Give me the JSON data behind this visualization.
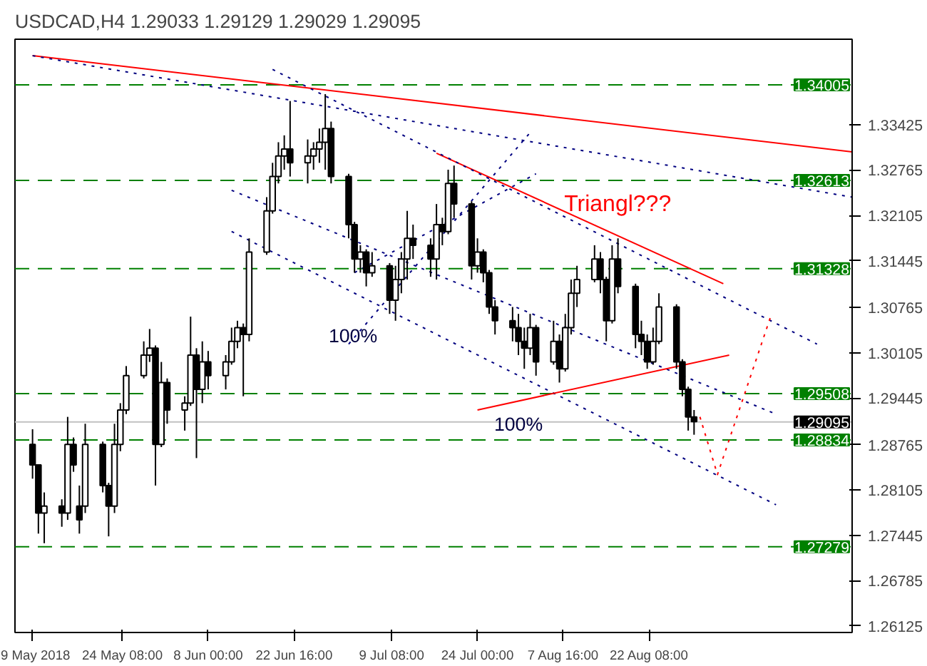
{
  "chart_data": {
    "type": "candlestick",
    "title": "USDCAD,H4  1.29033 1.29129 1.29029 1.29095",
    "color": "#000000",
    "x": [
      "2018-05-09",
      "2018-05-10",
      "2018-05-11",
      "2018-05-14",
      "2018-05-15",
      "2018-05-16",
      "2018-05-17",
      "2018-05-18",
      "2018-05-21",
      "2018-05-22",
      "2018-05-23",
      "2018-05-24",
      "2018-05-25",
      "2018-05-28",
      "2018-05-29",
      "2018-05-30",
      "2018-05-31",
      "2018-06-01",
      "2018-06-04",
      "2018-06-05",
      "2018-06-06",
      "2018-06-07",
      "2018-06-08",
      "2018-06-11",
      "2018-06-12",
      "2018-06-13",
      "2018-06-14",
      "2018-06-15",
      "2018-06-18",
      "2018-06-19",
      "2018-06-20",
      "2018-06-21",
      "2018-06-22",
      "2018-06-25",
      "2018-06-26",
      "2018-06-27",
      "2018-06-28",
      "2018-06-29",
      "2018-07-02",
      "2018-07-03",
      "2018-07-04",
      "2018-07-05",
      "2018-07-06",
      "2018-07-09",
      "2018-07-10",
      "2018-07-11",
      "2018-07-12",
      "2018-07-13",
      "2018-07-16",
      "2018-07-17",
      "2018-07-18",
      "2018-07-19",
      "2018-07-20",
      "2018-07-23",
      "2018-07-24",
      "2018-07-25",
      "2018-07-26",
      "2018-07-27",
      "2018-07-30",
      "2018-07-31",
      "2018-08-01",
      "2018-08-02",
      "2018-08-03",
      "2018-08-06",
      "2018-08-07",
      "2018-08-08",
      "2018-08-09",
      "2018-08-10",
      "2018-08-13",
      "2018-08-14",
      "2018-08-15",
      "2018-08-16",
      "2018-08-17",
      "2018-08-20",
      "2018-08-21",
      "2018-08-22",
      "2018-08-23",
      "2018-08-24",
      "2018-08-27",
      "2018-08-28",
      "2018-08-29",
      "2018-08-30"
    ],
    "ohlc": [
      [
        1.2877,
        1.2899,
        1.2827,
        1.2847
      ],
      [
        1.2847,
        1.2847,
        1.2747,
        1.2777
      ],
      [
        1.2777,
        1.2807,
        1.2733,
        1.2787
      ],
      [
        1.2787,
        1.2797,
        1.2757,
        1.2777
      ],
      [
        1.2777,
        1.2917,
        1.2767,
        1.2877
      ],
      [
        1.2877,
        1.2887,
        1.2837,
        1.2847
      ],
      [
        1.2787,
        1.2817,
        1.2747,
        1.2767
      ],
      [
        1.2787,
        1.2907,
        1.2777,
        1.2877
      ],
      [
        1.2877,
        1.2881,
        1.2807,
        1.2817
      ],
      [
        1.2817,
        1.2821,
        1.2743,
        1.2787
      ],
      [
        1.2787,
        1.2907,
        1.2777,
        1.2877
      ],
      [
        1.2877,
        1.2937,
        1.2867,
        1.2927
      ],
      [
        1.2927,
        1.2991,
        1.2921,
        1.2977
      ],
      [
        1.2977,
        1.3027,
        1.2973,
        1.3007
      ],
      [
        1.3007,
        1.3045,
        1.2997,
        1.3017
      ],
      [
        1.3017,
        1.3021,
        1.2817,
        1.2877
      ],
      [
        1.2877,
        1.2997,
        1.2873,
        1.2967
      ],
      [
        1.2967,
        1.2973,
        1.2907,
        1.2927
      ],
      [
        1.2927,
        1.2947,
        1.2897,
        1.2937
      ],
      [
        1.2937,
        1.3063,
        1.2933,
        1.3007
      ],
      [
        1.3007,
        1.3017,
        1.2857,
        1.2957
      ],
      [
        1.2957,
        1.3027,
        1.2937,
        1.2997
      ],
      [
        1.2997,
        1.3013,
        1.2957,
        1.2977
      ],
      [
        1.2977,
        1.3007,
        1.2957,
        1.2997
      ],
      [
        1.2997,
        1.3047,
        1.2993,
        1.3027
      ],
      [
        1.3027,
        1.3057,
        1.3017,
        1.3047
      ],
      [
        1.3047,
        1.3053,
        1.2947,
        1.3037
      ],
      [
        1.3037,
        1.3177,
        1.3027,
        1.3157
      ],
      [
        1.3157,
        1.3237,
        1.3153,
        1.3217
      ],
      [
        1.3217,
        1.3287,
        1.3213,
        1.3267
      ],
      [
        1.3267,
        1.3317,
        1.3257,
        1.3297
      ],
      [
        1.3297,
        1.3327,
        1.3277,
        1.3307
      ],
      [
        1.3307,
        1.3377,
        1.3267,
        1.3287
      ],
      [
        1.3287,
        1.3321,
        1.3257,
        1.3297
      ],
      [
        1.3297,
        1.3317,
        1.3277,
        1.3307
      ],
      [
        1.3307,
        1.3337,
        1.3287,
        1.3317
      ],
      [
        1.3317,
        1.3387,
        1.3277,
        1.3337
      ],
      [
        1.3337,
        1.3347,
        1.3257,
        1.3267
      ],
      [
        1.3267,
        1.3271,
        1.3177,
        1.3197
      ],
      [
        1.3197,
        1.3201,
        1.3127,
        1.3147
      ],
      [
        1.3147,
        1.3167,
        1.3127,
        1.3157
      ],
      [
        1.3157,
        1.3161,
        1.3107,
        1.3127
      ],
      [
        1.3127,
        1.3157,
        1.3121,
        1.3137
      ],
      [
        1.3137,
        1.3141,
        1.3067,
        1.3087
      ],
      [
        1.3087,
        1.3137,
        1.3057,
        1.3117
      ],
      [
        1.3117,
        1.3157,
        1.3097,
        1.3147
      ],
      [
        1.3147,
        1.3217,
        1.3117,
        1.3177
      ],
      [
        1.3177,
        1.3197,
        1.3147,
        1.3167
      ],
      [
        1.3167,
        1.3177,
        1.3121,
        1.3147
      ],
      [
        1.3147,
        1.3227,
        1.3117,
        1.3197
      ],
      [
        1.3197,
        1.3207,
        1.3167,
        1.3187
      ],
      [
        1.3187,
        1.3277,
        1.3183,
        1.3257
      ],
      [
        1.3257,
        1.3283,
        1.3207,
        1.3227
      ],
      [
        1.3227,
        1.3231,
        1.3117,
        1.3137
      ],
      [
        1.3137,
        1.3177,
        1.3127,
        1.3157
      ],
      [
        1.3157,
        1.3161,
        1.3113,
        1.3127
      ],
      [
        1.3127,
        1.3131,
        1.3067,
        1.3077
      ],
      [
        1.3077,
        1.3087,
        1.3037,
        1.3057
      ],
      [
        1.3057,
        1.3077,
        1.3027,
        1.3047
      ],
      [
        1.3047,
        1.3067,
        1.3007,
        1.3027
      ],
      [
        1.3027,
        1.3047,
        1.2987,
        1.3017
      ],
      [
        1.3017,
        1.3067,
        1.3007,
        1.3047
      ],
      [
        1.3047,
        1.3051,
        1.2977,
        1.2997
      ],
      [
        1.2997,
        1.3057,
        1.2993,
        1.3027
      ],
      [
        1.3027,
        1.3037,
        1.2967,
        1.2987
      ],
      [
        1.2987,
        1.3067,
        1.2983,
        1.3047
      ],
      [
        1.3047,
        1.3117,
        1.3037,
        1.3097
      ],
      [
        1.3097,
        1.3137,
        1.3077,
        1.3117
      ],
      [
        1.3117,
        1.3167,
        1.3113,
        1.3147
      ],
      [
        1.3147,
        1.3157,
        1.3097,
        1.3117
      ],
      [
        1.3117,
        1.3121,
        1.3027,
        1.3057
      ],
      [
        1.3057,
        1.3167,
        1.3053,
        1.3147
      ],
      [
        1.3147,
        1.3177,
        1.3097,
        1.3107
      ],
      [
        1.3107,
        1.3111,
        1.3017,
        1.3037
      ],
      [
        1.3037,
        1.3057,
        1.3007,
        1.3027
      ],
      [
        1.3027,
        1.3037,
        1.2987,
        1.2997
      ],
      [
        1.2997,
        1.3047,
        1.2993,
        1.3027
      ],
      [
        1.3027,
        1.3097,
        1.3023,
        1.3077
      ],
      [
        1.3077,
        1.3081,
        1.2987,
        1.2997
      ],
      [
        1.2997,
        1.3001,
        1.2947,
        1.2957
      ],
      [
        1.2957,
        1.2961,
        1.2897,
        1.2917
      ],
      [
        1.2917,
        1.2927,
        1.2891,
        1.291
      ]
    ],
    "series": [
      {
        "type": "line",
        "color": "#ff0000",
        "line_style": "solid",
        "x": [
          "2018-05-09",
          "2018-09-26"
        ],
        "values": [
          1.3443,
          1.3303
        ]
      },
      {
        "type": "line",
        "color": "#000080",
        "line_style": "dotted",
        "x": [
          "2018-05-09",
          "2018-09-26"
        ],
        "values": [
          1.3443,
          1.3237
        ]
      },
      {
        "type": "line",
        "color": "#ff0000",
        "line_style": "solid",
        "x": [
          "2018-07-17",
          "2018-09-04"
        ],
        "values": [
          1.3301,
          1.3111
        ]
      },
      {
        "type": "line",
        "color": "#000080",
        "line_style": "dotted",
        "x": [
          "2018-06-19",
          "2018-09-20"
        ],
        "values": [
          1.3423,
          1.3023
        ]
      },
      {
        "type": "line",
        "color": "#000080",
        "line_style": "dotted",
        "x": [
          "2018-06-12",
          "2018-09-13"
        ],
        "values": [
          1.3247,
          1.2921
        ]
      },
      {
        "type": "line",
        "color": "#000080",
        "line_style": "dotted",
        "x": [
          "2018-06-12",
          "2018-09-13"
        ],
        "values": [
          1.3187,
          1.2789
        ]
      },
      {
        "type": "line",
        "color": "#000080",
        "line_style": "dotted",
        "x": [
          "2018-07-02",
          "2018-08-02"
        ],
        "values": [
          1.3023,
          1.3331
        ]
      },
      {
        "type": "line",
        "color": "#000080",
        "line_style": "dotted",
        "x": [
          "2018-07-03",
          "2018-08-03"
        ],
        "values": [
          1.3127,
          1.3271
        ]
      },
      {
        "type": "line",
        "color": "#ff0000",
        "line_style": "solid",
        "x": [
          "2018-07-24",
          "2018-09-05"
        ],
        "values": [
          1.2927,
          1.3007
        ]
      },
      {
        "type": "line",
        "color": "#ff0000",
        "line_style": "dotted",
        "x": [
          "2018-08-31",
          "2018-09-03",
          "2018-09-12"
        ],
        "values": [
          1.2917,
          1.2833,
          1.3061
        ]
      }
    ],
    "ref_lines": [
      {
        "axis": "y",
        "value": 1.34005,
        "label": "1.34005",
        "color": "#008000",
        "line_style": "dashed"
      },
      {
        "axis": "y",
        "value": 1.32613,
        "label": "1.32613",
        "color": "#008000",
        "line_style": "dashed"
      },
      {
        "axis": "y",
        "value": 1.31328,
        "label": "1.31328",
        "color": "#008000",
        "line_style": "dashed"
      },
      {
        "axis": "y",
        "value": 1.29508,
        "label": "1.29508",
        "color": "#008000",
        "line_style": "dashed"
      },
      {
        "axis": "y",
        "value": 1.28834,
        "label": "1.28834",
        "color": "#008000",
        "line_style": "dashed"
      },
      {
        "axis": "y",
        "value": 1.27279,
        "label": "1.27279",
        "color": "#008000",
        "line_style": "dashed"
      },
      {
        "axis": "y",
        "value": 1.29095,
        "label": "1.29095",
        "color": "#c0c0c0",
        "line_style": "solid"
      }
    ],
    "annotations": [
      "Triangl???",
      "100%",
      "100%"
    ],
    "xlim": [
      "2018-05-06",
      "2018-09-26"
    ],
    "ylim": [
      1.2603,
      1.3467
    ],
    "xticks": [
      {
        "value": "2018-05-09T00:00",
        "label": "9 May 2018"
      },
      {
        "value": "2018-05-24T08:00",
        "label": "24 May 08:00"
      },
      {
        "value": "2018-06-08T00:00",
        "label": "8 Jun 00:00"
      },
      {
        "value": "2018-06-22T16:00",
        "label": "22 Jun 16:00"
      },
      {
        "value": "2018-07-09T08:00",
        "label": "9 Jul 08:00"
      },
      {
        "value": "2018-07-24T00:00",
        "label": "24 Jul 00:00"
      },
      {
        "value": "2018-08-07T16:00",
        "label": "7 Aug 16:00"
      },
      {
        "value": "2018-08-22T08:00",
        "label": "22 Aug 08:00"
      }
    ],
    "yticks": [
      1.33425,
      1.32765,
      1.32105,
      1.31445,
      1.30765,
      1.30105,
      1.29445,
      1.28765,
      1.28105,
      1.27445,
      1.26785,
      1.26125
    ],
    "grid": false
  }
}
